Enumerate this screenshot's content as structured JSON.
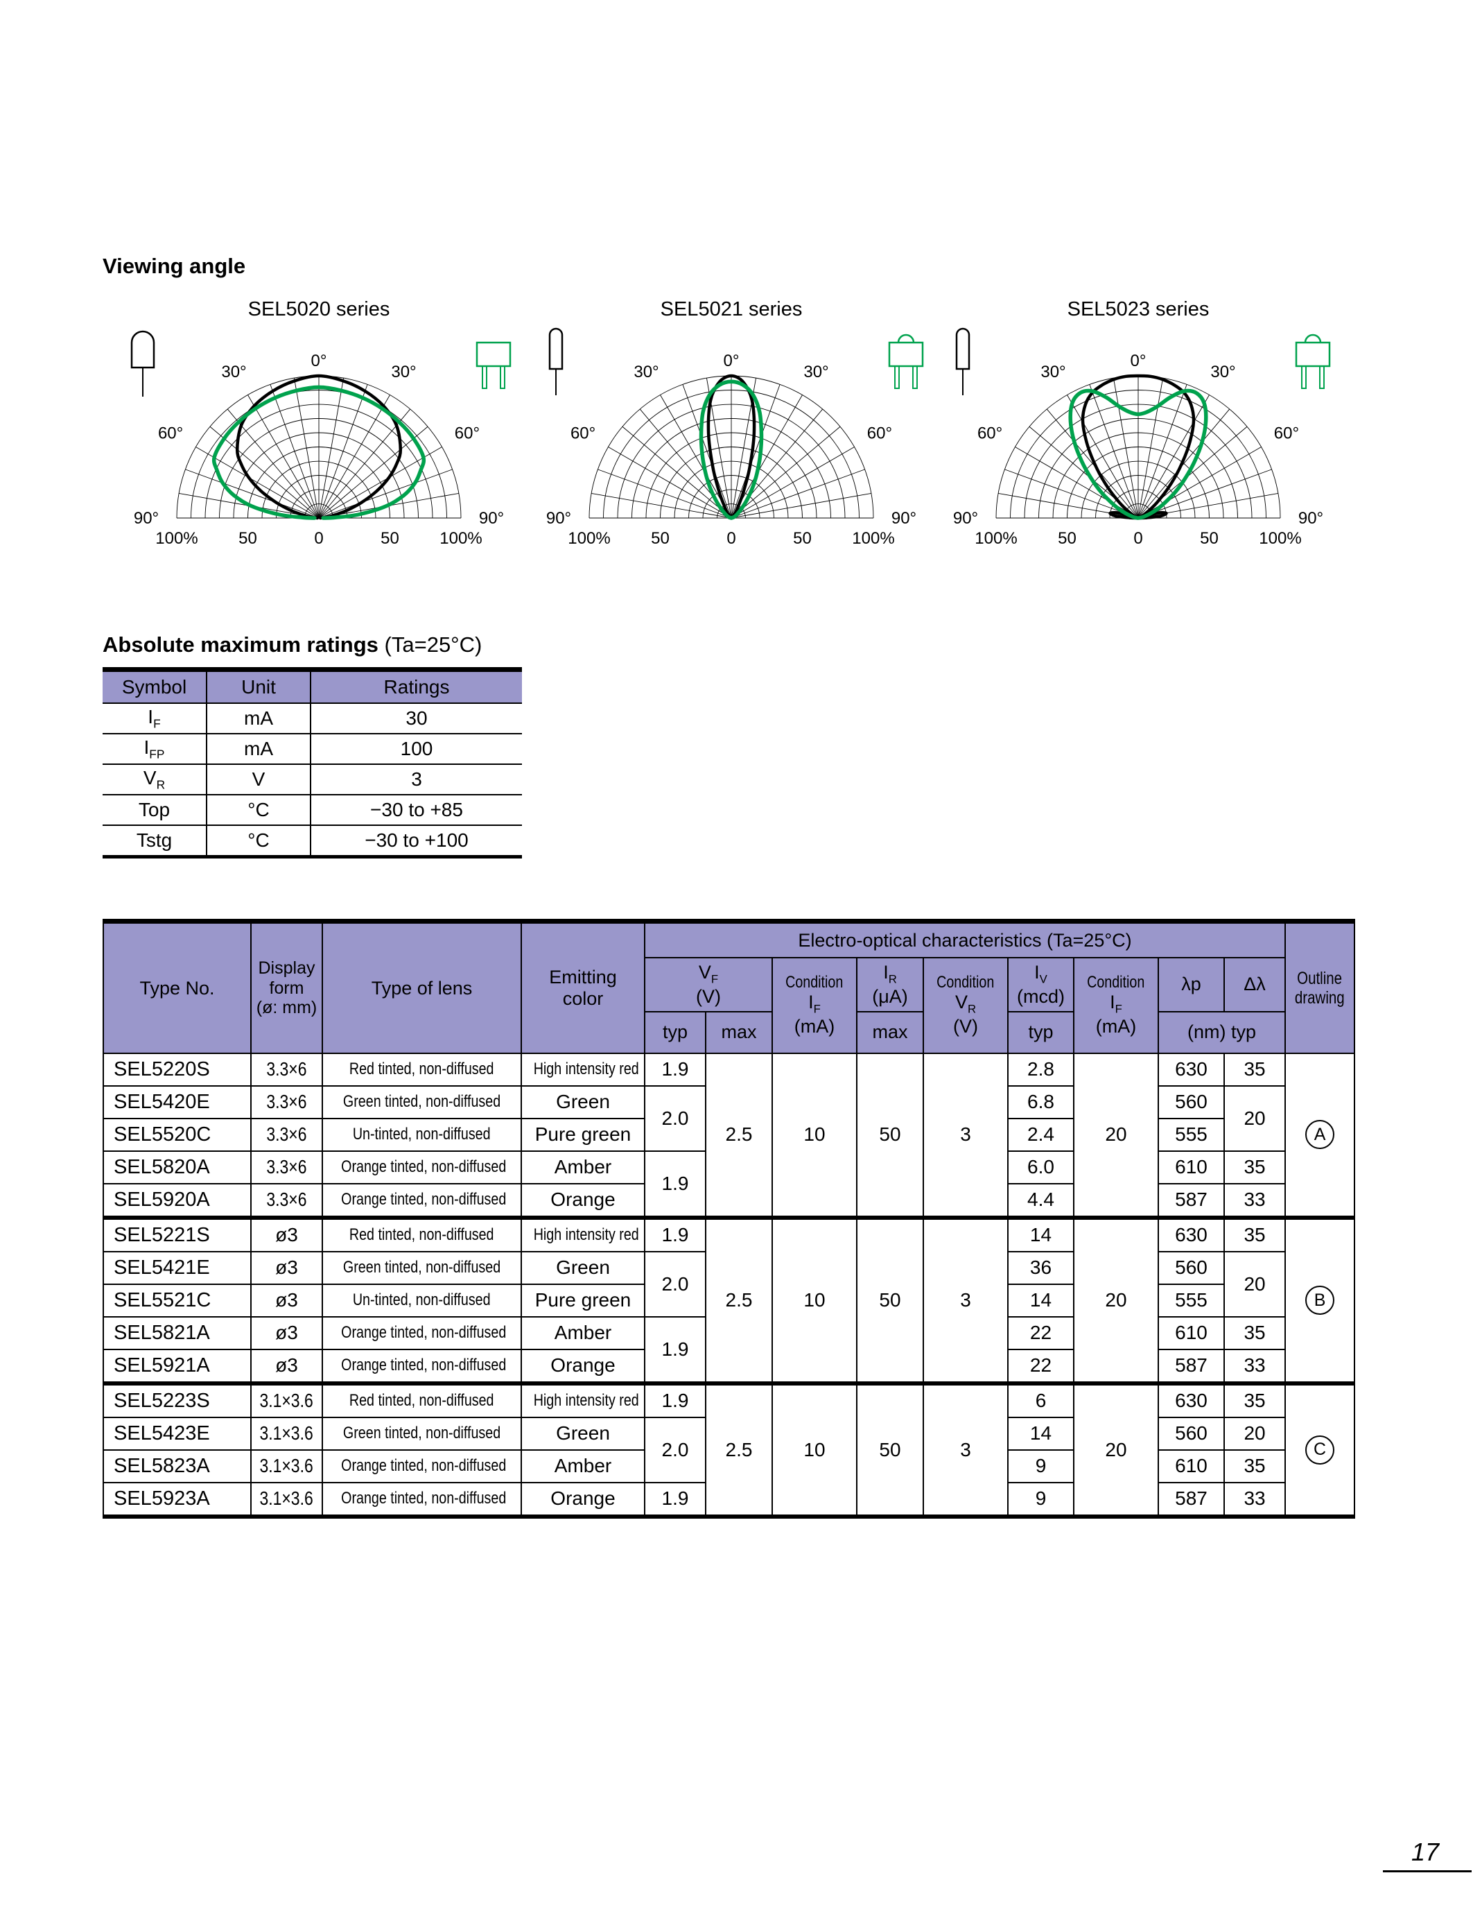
{
  "page": {
    "number": "17"
  },
  "colors": {
    "header_bg": "#9A97CB",
    "green_curve": "#00A24D",
    "black_curve": "#000000"
  },
  "viewing_angle": {
    "heading": "Viewing angle",
    "axis": {
      "deg0": "0°",
      "deg30": "30°",
      "deg60": "60°",
      "deg90": "90°",
      "pct100": "100%",
      "pct50": "50",
      "pct0": "0"
    },
    "charts": [
      {
        "title": "SEL5020 series",
        "left_icon": "round-led-icon",
        "right_icon": "flat-package-icon",
        "series": [
          {
            "name": "round LED (black)",
            "color": "#000000",
            "width": 4.5,
            "points": [
              [
                0,
                100
              ],
              [
                10,
                98
              ],
              [
                20,
                95
              ],
              [
                30,
                91
              ],
              [
                40,
                85
              ],
              [
                50,
                75
              ],
              [
                55,
                67
              ],
              [
                60,
                57
              ],
              [
                65,
                45
              ],
              [
                70,
                32
              ],
              [
                75,
                20
              ],
              [
                80,
                10
              ],
              [
                85,
                4
              ],
              [
                90,
                1
              ]
            ]
          },
          {
            "name": "flat package (green)",
            "color": "#00A24D",
            "width": 5.5,
            "points": [
              [
                0,
                92
              ],
              [
                10,
                91
              ],
              [
                20,
                90
              ],
              [
                30,
                89
              ],
              [
                40,
                88
              ],
              [
                50,
                87
              ],
              [
                60,
                85
              ],
              [
                65,
                79
              ],
              [
                70,
                72
              ],
              [
                75,
                62
              ],
              [
                80,
                48
              ],
              [
                85,
                28
              ],
              [
                88,
                12
              ],
              [
                90,
                3
              ]
            ]
          }
        ]
      },
      {
        "title": "SEL5021 series",
        "left_icon": "cylinder-led-icon",
        "right_icon": "flat-package-dome-icon",
        "series": [
          {
            "name": "cylinder LED (black)",
            "color": "#000000",
            "width": 4.5,
            "points": [
              [
                0,
                100
              ],
              [
                5,
                96
              ],
              [
                10,
                84
              ],
              [
                15,
                62
              ],
              [
                20,
                38
              ],
              [
                25,
                20
              ],
              [
                30,
                10
              ],
              [
                35,
                6
              ],
              [
                40,
                4
              ],
              [
                50,
                2
              ],
              [
                60,
                1
              ],
              [
                75,
                1
              ],
              [
                90,
                0
              ]
            ]
          },
          {
            "name": "flat package (green)",
            "color": "#00A24D",
            "width": 5.5,
            "points": [
              [
                0,
                96
              ],
              [
                5,
                94
              ],
              [
                10,
                88
              ],
              [
                15,
                77
              ],
              [
                20,
                62
              ],
              [
                25,
                48
              ],
              [
                30,
                36
              ],
              [
                35,
                26
              ],
              [
                40,
                18
              ],
              [
                45,
                12
              ],
              [
                50,
                8
              ],
              [
                60,
                4
              ],
              [
                70,
                2
              ],
              [
                90,
                0
              ]
            ]
          }
        ]
      },
      {
        "title": "SEL5023 series",
        "left_icon": "cylinder-led-icon",
        "right_icon": "flat-package-dome-icon",
        "series": [
          {
            "name": "cylinder LED (black)",
            "color": "#000000",
            "width": 4.5,
            "points": [
              [
                0,
                100
              ],
              [
                5,
                100
              ],
              [
                10,
                99
              ],
              [
                15,
                97
              ],
              [
                20,
                94
              ],
              [
                25,
                88
              ],
              [
                30,
                78
              ],
              [
                35,
                62
              ],
              [
                40,
                45
              ],
              [
                45,
                30
              ],
              [
                50,
                18
              ],
              [
                55,
                10
              ],
              [
                60,
                5
              ],
              [
                65,
                3
              ],
              [
                70,
                4
              ],
              [
                75,
                14
              ],
              [
                80,
                20
              ],
              [
                85,
                16
              ],
              [
                88,
                6
              ],
              [
                90,
                1
              ]
            ]
          },
          {
            "name": "flat package (green)",
            "color": "#00A24D",
            "width": 5.5,
            "points": [
              [
                0,
                73
              ],
              [
                5,
                75
              ],
              [
                10,
                80
              ],
              [
                15,
                88
              ],
              [
                20,
                95
              ],
              [
                25,
                97
              ],
              [
                30,
                93
              ],
              [
                35,
                83
              ],
              [
                40,
                70
              ],
              [
                45,
                56
              ],
              [
                50,
                43
              ],
              [
                55,
                32
              ],
              [
                60,
                22
              ],
              [
                65,
                15
              ],
              [
                70,
                9
              ],
              [
                75,
                5
              ],
              [
                80,
                3
              ],
              [
                85,
                1
              ],
              [
                90,
                0
              ]
            ]
          }
        ]
      }
    ]
  },
  "abs_max": {
    "heading_bold": "Absolute maximum ratings",
    "heading_normal": " (Ta=25°C)",
    "columns": [
      "Symbol",
      "Unit",
      "Ratings"
    ],
    "rows": [
      {
        "sym": "I",
        "sub": "F",
        "unit": "mA",
        "rating": "30"
      },
      {
        "sym": "I",
        "sub": "FP",
        "unit": "mA",
        "rating": "100"
      },
      {
        "sym": "V",
        "sub": "R",
        "unit": "V",
        "rating": "3"
      },
      {
        "sym": "Top",
        "sub": "",
        "unit": "°C",
        "rating": "−30 to +85"
      },
      {
        "sym": "Tstg",
        "sub": "",
        "unit": "°C",
        "rating": "−30 to +100"
      }
    ]
  },
  "eo": {
    "header": {
      "type_no": "Type No.",
      "display_form_lines": [
        "Display",
        "form",
        "(ø: mm)"
      ],
      "type_of_lens": "Type of lens",
      "emitting_color_lines": [
        "Emitting",
        "color"
      ],
      "span_title": "Electro-optical characteristics (Ta=25°C)",
      "outline_lines": [
        "Outline",
        "drawing"
      ],
      "vf": {
        "sym": "V",
        "sub": "F",
        "unit": "(V)"
      },
      "cond_if": {
        "word": "Condition",
        "sym": "I",
        "sub": "F",
        "unit": "(mA)"
      },
      "ir": {
        "sym": "I",
        "sub": "R",
        "unit": "(μA)"
      },
      "cond_vr": {
        "word": "Condition",
        "sym": "V",
        "sub": "R",
        "unit": "(V)"
      },
      "iv": {
        "sym": "I",
        "sub": "V",
        "unit": "(mcd)"
      },
      "lambda_p": "λp",
      "delta_lambda": "Δλ",
      "typ": "typ",
      "max": "max",
      "nm_typ": "(nm) typ"
    },
    "groups": [
      {
        "outline": "A",
        "shared": {
          "vf_max": "2.5",
          "cond_if1": "10",
          "ir_max": "50",
          "cond_vr": "3",
          "cond_if2": "20"
        },
        "vf_typ": [
          {
            "v": "1.9",
            "s": 1
          },
          {
            "v": "2.0",
            "s": 2
          },
          {
            "v": "1.9",
            "s": 2
          }
        ],
        "delta": [
          {
            "v": "35",
            "s": 1
          },
          {
            "v": "20",
            "s": 2
          },
          {
            "v": "35",
            "s": 1
          },
          {
            "v": "33",
            "s": 1
          }
        ],
        "rows": [
          {
            "type": "SEL5220S",
            "form": "3.3×6",
            "lens": "Red tinted, non-diffused",
            "color": "High intensity red",
            "iv": "2.8",
            "lp": "630"
          },
          {
            "type": "SEL5420E",
            "form": "3.3×6",
            "lens": "Green tinted, non-diffused",
            "color": "Green",
            "iv": "6.8",
            "lp": "560"
          },
          {
            "type": "SEL5520C",
            "form": "3.3×6",
            "lens": "Un-tinted, non-diffused",
            "color": "Pure green",
            "iv": "2.4",
            "lp": "555"
          },
          {
            "type": "SEL5820A",
            "form": "3.3×6",
            "lens": "Orange tinted, non-diffused",
            "color": "Amber",
            "iv": "6.0",
            "lp": "610"
          },
          {
            "type": "SEL5920A",
            "form": "3.3×6",
            "lens": "Orange tinted, non-diffused",
            "color": "Orange",
            "iv": "4.4",
            "lp": "587"
          }
        ]
      },
      {
        "outline": "B",
        "shared": {
          "vf_max": "2.5",
          "cond_if1": "10",
          "ir_max": "50",
          "cond_vr": "3",
          "cond_if2": "20"
        },
        "vf_typ": [
          {
            "v": "1.9",
            "s": 1
          },
          {
            "v": "2.0",
            "s": 2
          },
          {
            "v": "1.9",
            "s": 2
          }
        ],
        "delta": [
          {
            "v": "35",
            "s": 1
          },
          {
            "v": "20",
            "s": 2
          },
          {
            "v": "35",
            "s": 1
          },
          {
            "v": "33",
            "s": 1
          }
        ],
        "rows": [
          {
            "type": "SEL5221S",
            "form": "ø3",
            "lens": "Red tinted, non-diffused",
            "color": "High intensity red",
            "iv": "14",
            "lp": "630"
          },
          {
            "type": "SEL5421E",
            "form": "ø3",
            "lens": "Green tinted, non-diffused",
            "color": "Green",
            "iv": "36",
            "lp": "560"
          },
          {
            "type": "SEL5521C",
            "form": "ø3",
            "lens": "Un-tinted, non-diffused",
            "color": "Pure green",
            "iv": "14",
            "lp": "555"
          },
          {
            "type": "SEL5821A",
            "form": "ø3",
            "lens": "Orange tinted, non-diffused",
            "color": "Amber",
            "iv": "22",
            "lp": "610"
          },
          {
            "type": "SEL5921A",
            "form": "ø3",
            "lens": "Orange tinted, non-diffused",
            "color": "Orange",
            "iv": "22",
            "lp": "587"
          }
        ]
      },
      {
        "outline": "C",
        "shared": {
          "vf_max": "2.5",
          "cond_if1": "10",
          "ir_max": "50",
          "cond_vr": "3",
          "cond_if2": "20"
        },
        "vf_typ": [
          {
            "v": "1.9",
            "s": 1
          },
          {
            "v": "2.0",
            "s": 2
          },
          {
            "v": "1.9",
            "s": 1
          }
        ],
        "delta": [
          {
            "v": "35",
            "s": 1
          },
          {
            "v": "20",
            "s": 1
          },
          {
            "v": "35",
            "s": 1
          },
          {
            "v": "33",
            "s": 1
          }
        ],
        "rows": [
          {
            "type": "SEL5223S",
            "form": "3.1×3.6",
            "lens": "Red tinted, non-diffused",
            "color": "High intensity red",
            "iv": "6",
            "lp": "630"
          },
          {
            "type": "SEL5423E",
            "form": "3.1×3.6",
            "lens": "Green tinted, non-diffused",
            "color": "Green",
            "iv": "14",
            "lp": "560"
          },
          {
            "type": "SEL5823A",
            "form": "3.1×3.6",
            "lens": "Orange tinted, non-diffused",
            "color": "Amber",
            "iv": "9",
            "lp": "610"
          },
          {
            "type": "SEL5923A",
            "form": "3.1×3.6",
            "lens": "Orange tinted, non-diffused",
            "color": "Orange",
            "iv": "9",
            "lp": "587"
          }
        ]
      }
    ]
  }
}
